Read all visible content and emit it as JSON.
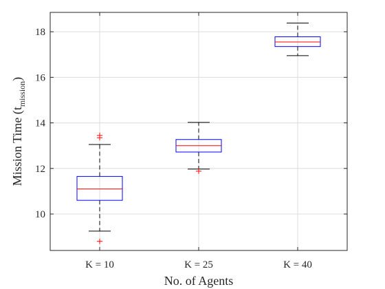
{
  "chart_data": {
    "type": "boxplot",
    "title": "",
    "xlabel": "No. of Agents",
    "ylabel": {
      "main": "Mission Time (t",
      "subscript": "mission",
      "close": ")"
    },
    "ylim": [
      8.4,
      18.85
    ],
    "yticks": [
      10,
      12,
      14,
      16,
      18
    ],
    "grid": true,
    "categories": [
      "K = 10",
      "K = 25",
      "K = 40"
    ],
    "boxes": [
      {
        "label": "K = 10",
        "whisker_low": 9.25,
        "q1": 10.6,
        "median": 11.1,
        "q3": 11.65,
        "whisker_high": 13.05,
        "outliers": [
          8.8,
          13.35,
          13.45
        ]
      },
      {
        "label": "K = 25",
        "whisker_low": 11.97,
        "q1": 12.72,
        "median": 13.0,
        "q3": 13.27,
        "whisker_high": 14.02,
        "outliers": [
          11.88
        ]
      },
      {
        "label": "K = 40",
        "whisker_low": 16.95,
        "q1": 17.35,
        "median": 17.55,
        "q3": 17.78,
        "whisker_high": 18.38,
        "outliers": []
      }
    ],
    "colors": {
      "box": "#0000ff",
      "median": "#ff0000",
      "whisker": "#000000",
      "outlier": "#ff0000",
      "grid": "#dcdcdc",
      "axis": "#262626"
    }
  }
}
